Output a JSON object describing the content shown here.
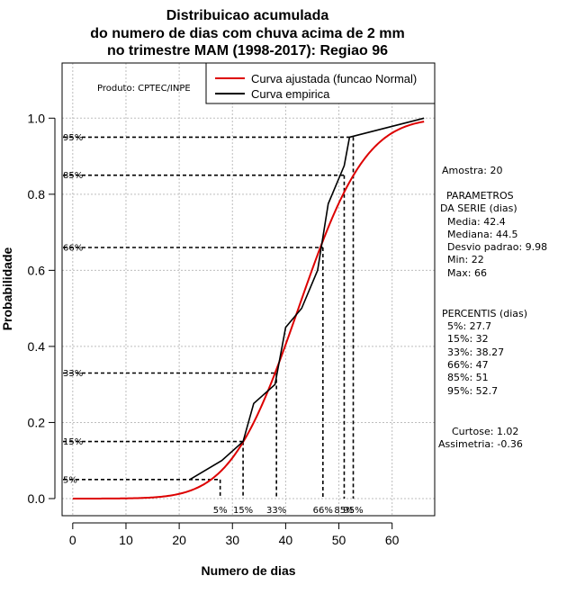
{
  "chart_data": {
    "type": "line",
    "title": [
      "Distribuicao acumulada",
      "do numero de dias com chuva acima de 2 mm",
      "no trimestre MAM (1998-2017): Regiao 96"
    ],
    "xlabel": "Numero de dias",
    "ylabel": "Probabilidade",
    "xlim": [
      -2,
      68
    ],
    "ylim": [
      -0.045,
      1.145
    ],
    "x_ticks": [
      0,
      10,
      20,
      30,
      40,
      50,
      60
    ],
    "y_ticks": [
      0.0,
      0.2,
      0.4,
      0.6,
      0.8,
      1.0
    ],
    "y_tick_labels": [
      "0.0",
      "0.2",
      "0.4",
      "0.6",
      "0.8",
      "1.0"
    ],
    "grid": true,
    "product_label": "Produto: CPTEC/INPE",
    "legend": {
      "position": "top-right",
      "entries": [
        {
          "label": "Curva ajustada (funcao Normal)",
          "color": "#dd0000"
        },
        {
          "label": "Curva empirica",
          "color": "#000000"
        }
      ]
    },
    "series": [
      {
        "name": "Curva ajustada (funcao Normal)",
        "kind": "normal_cdf",
        "mean": 42.4,
        "sd": 9.98,
        "x_range": [
          0,
          66
        ],
        "color": "#dd0000"
      },
      {
        "name": "Curva empirica",
        "color": "#000000",
        "points": [
          [
            22,
            0.05
          ],
          [
            28,
            0.1
          ],
          [
            32,
            0.15
          ],
          [
            34,
            0.25
          ],
          [
            38,
            0.3
          ],
          [
            40,
            0.45
          ],
          [
            43,
            0.5
          ],
          [
            46,
            0.6
          ],
          [
            48,
            0.775
          ],
          [
            51,
            0.875
          ],
          [
            52,
            0.95
          ],
          [
            66,
            1.0
          ]
        ]
      }
    ],
    "percentile_lines": [
      {
        "x": 27.7,
        "y": 0.05,
        "x_label": "5%",
        "y_label": "5%"
      },
      {
        "x": 32,
        "y": 0.15,
        "x_label": "15%",
        "y_label": "15%"
      },
      {
        "x": 38.27,
        "y": 0.33,
        "x_label": "33%",
        "y_label": "33%"
      },
      {
        "x": 47,
        "y": 0.66,
        "x_label": "66%",
        "y_label": "66%"
      },
      {
        "x": 51,
        "y": 0.85,
        "x_label": "85%",
        "y_label": "85%"
      },
      {
        "x": 52.7,
        "y": 0.95,
        "x_label": "95%",
        "y_label": "95%"
      }
    ]
  },
  "side_panel": {
    "sample": "Amostra: 20",
    "params_title": "PARAMETROS",
    "params_subtitle": "DA SERIE (dias)",
    "params": [
      "Media: 42.4",
      "Mediana: 44.5",
      "Desvio padrao: 9.98",
      "Min: 22",
      "Max: 66"
    ],
    "percentis_title": "PERCENTIS (dias)",
    "percentis": [
      "5%: 27.7",
      "15%: 32",
      "33%: 38.27",
      "66%: 47",
      "85%: 51",
      "95%: 52.7"
    ],
    "kurtosis": "Curtose: 1.02",
    "skewness": "Assimetria: -0.36"
  }
}
